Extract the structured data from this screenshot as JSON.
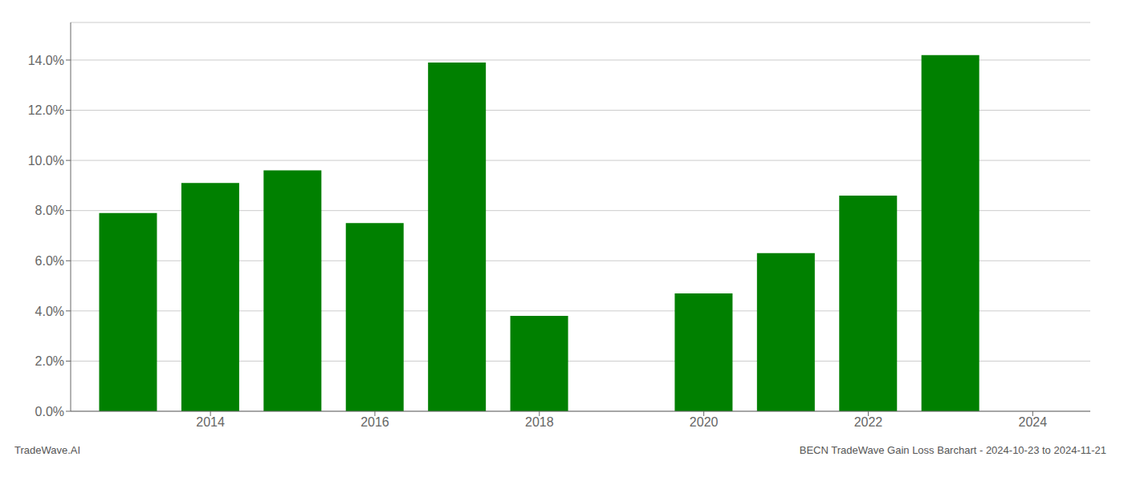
{
  "chart_data": {
    "type": "bar",
    "title": "BECN TradeWave Gain Loss Barchart - 2024-10-23 to 2024-11-21",
    "annotations": [
      "TradeWave.AI"
    ],
    "x": [
      2013,
      2014,
      2015,
      2016,
      2017,
      2018,
      2019,
      2020,
      2021,
      2022,
      2023
    ],
    "values": [
      0.079,
      0.091,
      0.096,
      0.075,
      0.139,
      0.038,
      0.0,
      0.047,
      0.063,
      0.086,
      0.142
    ],
    "color": "#008000",
    "xlim": [
      2012.3,
      2024.7
    ],
    "xticks": [
      2014,
      2016,
      2018,
      2020,
      2022,
      2024
    ],
    "ylim": [
      0.0,
      0.155
    ],
    "yticks": [
      {
        "value": 0.0,
        "label": "0.0%"
      },
      {
        "value": 0.02,
        "label": "2.0%"
      },
      {
        "value": 0.04,
        "label": "4.0%"
      },
      {
        "value": 0.06,
        "label": "6.0%"
      },
      {
        "value": 0.08,
        "label": "8.0%"
      },
      {
        "value": 0.1,
        "label": "10.0%"
      },
      {
        "value": 0.12,
        "label": "12.0%"
      },
      {
        "value": 0.14,
        "label": "14.0%"
      }
    ],
    "grid": true
  }
}
